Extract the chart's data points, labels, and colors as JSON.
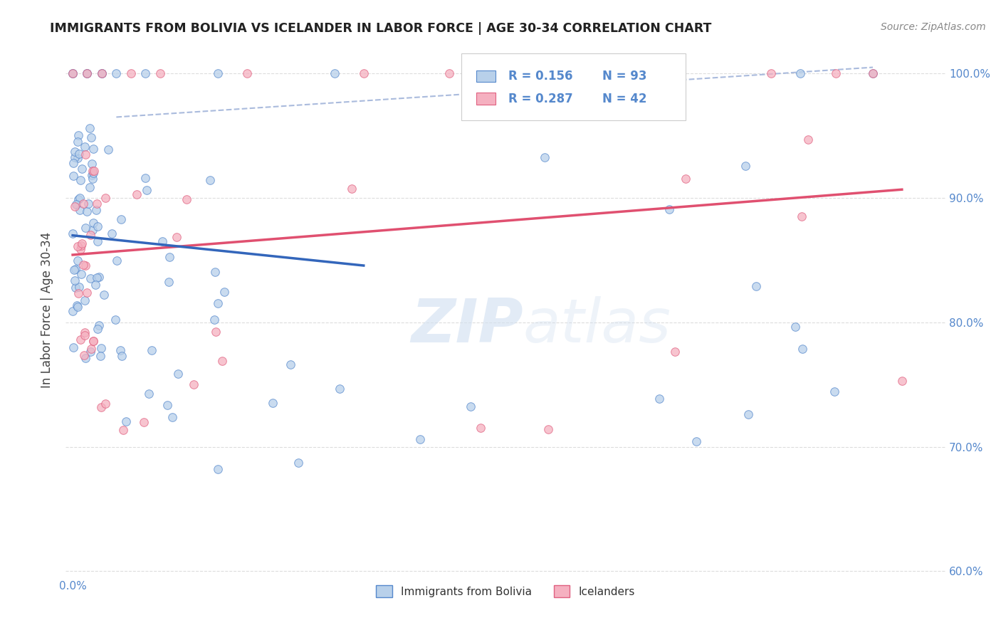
{
  "title": "IMMIGRANTS FROM BOLIVIA VS ICELANDER IN LABOR FORCE | AGE 30-34 CORRELATION CHART",
  "source": "Source: ZipAtlas.com",
  "ylabel": "In Labor Force | Age 30-34",
  "xlim": [
    -0.005,
    0.6
  ],
  "ylim": [
    0.595,
    1.025
  ],
  "yticks": [
    0.6,
    0.7,
    0.8,
    0.9,
    1.0
  ],
  "ytick_labels": [
    "60.0%",
    "70.0%",
    "80.0%",
    "90.0%",
    "100.0%"
  ],
  "xtick_val": 0.0,
  "xtick_label": "0.0%",
  "legend_r1": "R = 0.156",
  "legend_n1": "N = 93",
  "legend_r2": "R = 0.287",
  "legend_n2": "N = 42",
  "bolivia_fill": "#b8d0ea",
  "bolivia_edge": "#5588cc",
  "iceland_fill": "#f5b0c0",
  "iceland_edge": "#e06080",
  "trend_bolivia": "#3366bb",
  "trend_iceland": "#e05070",
  "ref_line_color": "#aabbdd",
  "watermark_color": "#d0dff0",
  "background": "#ffffff",
  "grid_color": "#dddddd",
  "title_color": "#222222",
  "ylabel_color": "#444444",
  "tick_color": "#5588cc",
  "source_color": "#888888",
  "legend_box_edge": "#cccccc",
  "bottom_legend_color": "#333333"
}
